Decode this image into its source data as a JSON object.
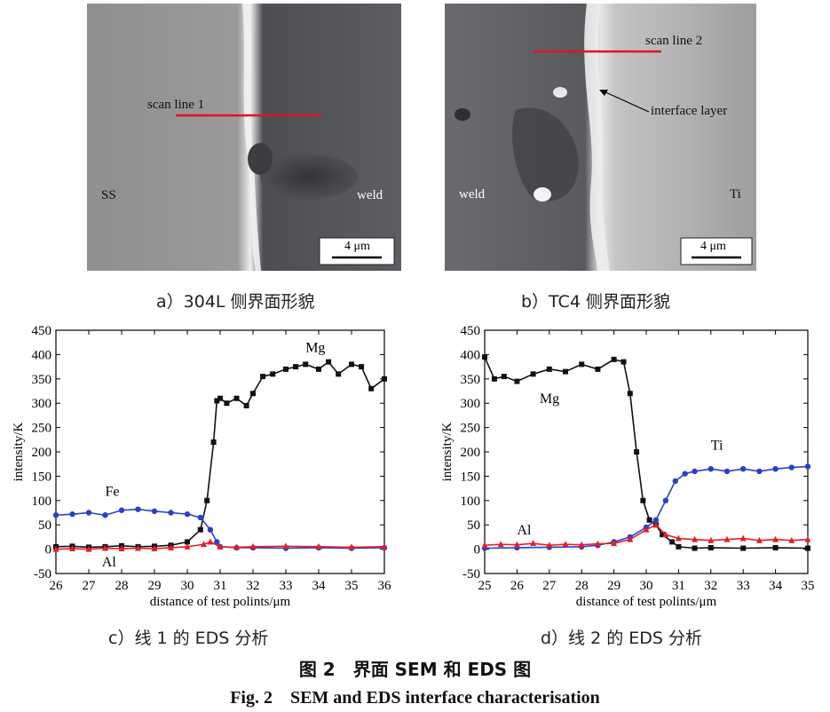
{
  "panels": {
    "a": {
      "caption": "a）304L 侧界面形貌",
      "scan_label": "scan line 1",
      "left_label": "SS",
      "right_label": "weld",
      "scale_bar": "4 μm"
    },
    "b": {
      "caption": "b）TC4 侧界面形貌",
      "scan_label": "scan line 2",
      "left_label": "weld",
      "right_label": "Ti",
      "interface_label": "interface layer",
      "scale_bar": "4 μm"
    },
    "c": {
      "caption": "c）线 1 的 EDS 分析"
    },
    "d": {
      "caption": "d）线 2 的 EDS 分析"
    }
  },
  "figure": {
    "title_cn": "图 2　界面 SEM 和 EDS 图",
    "title_en": "Fig. 2　SEM and EDS interface characterisation"
  },
  "colors": {
    "Mg": "#111111",
    "Fe": "#2b3fc9",
    "Ti": "#2b3fc9",
    "Al": "#e0202a"
  },
  "chart_data": [
    {
      "type": "line",
      "xlabel": "distance of test polints/μm",
      "ylabel": "intensity/K",
      "xlim": [
        26,
        36
      ],
      "ylim": [
        -50,
        450
      ],
      "xticks": [
        26,
        27,
        28,
        29,
        30,
        31,
        32,
        33,
        34,
        35,
        36
      ],
      "yticks": [
        -50,
        0,
        50,
        100,
        150,
        200,
        250,
        300,
        350,
        400,
        450
      ],
      "series": [
        {
          "name": "Mg",
          "color": "#111111",
          "marker": "square",
          "x": [
            26,
            26.5,
            27,
            27.5,
            28,
            28.5,
            29,
            29.5,
            30,
            30.4,
            30.6,
            30.8,
            30.9,
            31.0,
            31.2,
            31.5,
            31.8,
            32.0,
            32.3,
            32.6,
            33.0,
            33.3,
            33.6,
            34.0,
            34.3,
            34.6,
            35.0,
            35.3,
            35.6,
            36.0
          ],
          "y": [
            5,
            6,
            4,
            5,
            7,
            5,
            6,
            8,
            15,
            40,
            100,
            220,
            305,
            310,
            300,
            310,
            295,
            320,
            355,
            360,
            370,
            375,
            380,
            370,
            385,
            360,
            380,
            375,
            330,
            350
          ]
        },
        {
          "name": "Fe",
          "color": "#2b3fc9",
          "marker": "circle",
          "x": [
            26,
            26.5,
            27,
            27.5,
            28,
            28.5,
            29,
            29.5,
            30,
            30.4,
            30.7,
            30.9,
            31.0,
            31.5,
            32,
            33,
            34,
            35,
            36
          ],
          "y": [
            70,
            72,
            75,
            70,
            80,
            82,
            78,
            75,
            72,
            65,
            40,
            15,
            5,
            3,
            3,
            2,
            3,
            2,
            3
          ]
        },
        {
          "name": "Al",
          "color": "#e0202a",
          "marker": "triangle",
          "x": [
            26,
            26.5,
            27,
            27.5,
            28,
            28.5,
            29,
            29.5,
            30,
            30.5,
            30.7,
            31.0,
            31.5,
            32,
            33,
            34,
            35,
            36
          ],
          "y": [
            0,
            1,
            0,
            2,
            1,
            2,
            1,
            3,
            5,
            10,
            15,
            5,
            4,
            5,
            6,
            5,
            4,
            5
          ]
        }
      ],
      "annotations": [
        "Mg",
        "Fe",
        "Al"
      ]
    },
    {
      "type": "line",
      "xlabel": "distance of test polints/μm",
      "ylabel": "intensity/K",
      "xlim": [
        25,
        35
      ],
      "ylim": [
        -50,
        450
      ],
      "xticks": [
        25,
        26,
        27,
        28,
        29,
        30,
        31,
        32,
        33,
        34,
        35
      ],
      "yticks": [
        -50,
        0,
        50,
        100,
        150,
        200,
        250,
        300,
        350,
        400,
        450
      ],
      "series": [
        {
          "name": "Mg",
          "color": "#111111",
          "marker": "square",
          "x": [
            25,
            25.3,
            25.6,
            26,
            26.5,
            27,
            27.5,
            28,
            28.5,
            29,
            29.3,
            29.5,
            29.7,
            29.9,
            30.1,
            30.3,
            30.5,
            30.8,
            31.0,
            31.5,
            32,
            33,
            34,
            35
          ],
          "y": [
            395,
            350,
            355,
            345,
            360,
            370,
            365,
            380,
            370,
            390,
            385,
            320,
            200,
            100,
            60,
            50,
            30,
            15,
            5,
            2,
            3,
            2,
            3,
            2
          ]
        },
        {
          "name": "Ti",
          "color": "#2b3fc9",
          "marker": "circle",
          "x": [
            25,
            26,
            27,
            28,
            28.5,
            29,
            29.5,
            30,
            30.3,
            30.6,
            30.9,
            31.2,
            31.5,
            32,
            32.5,
            33,
            33.5,
            34,
            34.5,
            35
          ],
          "y": [
            2,
            3,
            4,
            5,
            8,
            15,
            25,
            45,
            60,
            100,
            140,
            155,
            160,
            165,
            160,
            165,
            160,
            165,
            168,
            170
          ]
        },
        {
          "name": "Al",
          "color": "#e0202a",
          "marker": "triangle",
          "x": [
            25,
            25.5,
            26,
            26.5,
            27,
            27.5,
            28,
            28.5,
            29,
            29.5,
            30,
            30.3,
            30.6,
            31.0,
            31.5,
            32,
            32.5,
            33,
            33.5,
            34,
            34.5,
            35
          ],
          "y": [
            8,
            10,
            9,
            12,
            8,
            10,
            9,
            11,
            12,
            20,
            40,
            50,
            30,
            22,
            20,
            18,
            20,
            22,
            18,
            20,
            18,
            20
          ]
        }
      ],
      "annotations": [
        "Mg",
        "Ti",
        "Al"
      ]
    }
  ]
}
